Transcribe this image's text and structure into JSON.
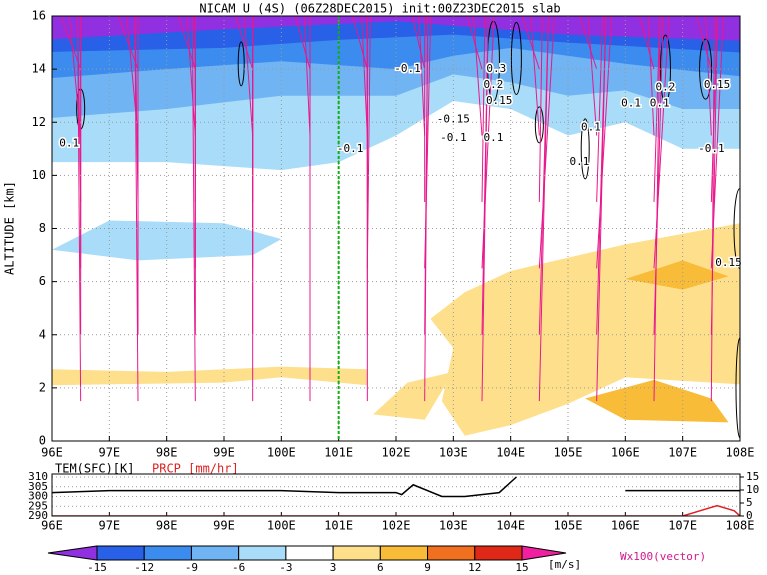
{
  "chart_data": [
    {
      "type": "vector",
      "title": "NICAM U (4S) (06Z28DEC2015) init:00Z23DEC2015 slab",
      "ylabel": "ALTITUDE [km]",
      "xlim": [
        96,
        108
      ],
      "xticks": [
        {
          "value": 96,
          "label": "96E"
        },
        {
          "value": 97,
          "label": "97E"
        },
        {
          "value": 98,
          "label": "98E"
        },
        {
          "value": 99,
          "label": "99E"
        },
        {
          "value": 100,
          "label": "100E"
        },
        {
          "value": 101,
          "label": "101E"
        },
        {
          "value": 102,
          "label": "102E"
        },
        {
          "value": 103,
          "label": "103E"
        },
        {
          "value": 104,
          "label": "104E"
        },
        {
          "value": 105,
          "label": "105E"
        },
        {
          "value": 106,
          "label": "106E"
        },
        {
          "value": 107,
          "label": "107E"
        },
        {
          "value": 108,
          "label": "108E"
        }
      ],
      "ylim": [
        0,
        16
      ],
      "yticks": [
        0,
        2,
        4,
        6,
        8,
        10,
        12,
        14,
        16
      ],
      "grid": true,
      "vline": {
        "x": 101,
        "color": "#10b010"
      },
      "vector_color": "#e8188c",
      "vectors": {
        "x": [
          96.5,
          97.5,
          98.5,
          99.5,
          100.5,
          101.5,
          102.5,
          103.5,
          104.5,
          105.5,
          106.5,
          107.5
        ],
        "rows": [
          {
            "z": 1.5,
            "u": [
              -1,
              -1,
              -1,
              0,
              0,
              0,
              1,
              2,
              3,
              3,
              2,
              1
            ],
            "w": [
              -4,
              -4,
              -4,
              -4,
              -4,
              -3,
              -5,
              -6,
              -6,
              -5,
              -4,
              -3
            ]
          },
          {
            "z": 4,
            "u": [
              0,
              0,
              0,
              0,
              0,
              0,
              1,
              2,
              3,
              3,
              3,
              2
            ],
            "w": [
              -3,
              -3,
              -3,
              -3,
              -3,
              -3,
              -4,
              -4,
              -3,
              -3,
              -2,
              -2
            ]
          },
          {
            "z": 6.5,
            "u": [
              0,
              0,
              0,
              0,
              0,
              1,
              2,
              4,
              5,
              5,
              5,
              4
            ],
            "w": [
              -3,
              -3,
              -3,
              -3,
              -3,
              -3,
              -3,
              -2,
              -1,
              -1,
              0,
              1
            ]
          },
          {
            "z": 9,
            "u": [
              -1,
              -1,
              0,
              0,
              0,
              0,
              0,
              1,
              1,
              2,
              2,
              2
            ],
            "w": [
              -3,
              -3,
              -3,
              -3,
              -3,
              -3,
              -2,
              -2,
              -1,
              -1,
              2,
              3
            ]
          },
          {
            "z": 11.5,
            "u": [
              -4,
              -4,
              -3,
              -3,
              -2,
              -2,
              -2,
              -3,
              -3,
              -3,
              -2,
              -2
            ],
            "w": [
              -1,
              -1,
              -1,
              -2,
              -2,
              -2,
              -1,
              1,
              2,
              2,
              3,
              3
            ]
          },
          {
            "z": 14,
            "u": [
              -8,
              -8,
              -7,
              -7,
              -6,
              -6,
              -5,
              -6,
              -7,
              -7,
              -6,
              -6
            ],
            "w": [
              0,
              0,
              1,
              1,
              0,
              1,
              1,
              2,
              2,
              2,
              1,
              1
            ]
          }
        ]
      },
      "contour_labels": [
        "-0.1",
        "0.3",
        "0.2",
        "0.15",
        "0.1",
        "0.2",
        "0.15",
        "-0.15",
        "-0.1",
        "0.1",
        "0.1",
        "0.1",
        "0.1",
        "-0.1",
        "0.15",
        "0.1",
        "-0.1"
      ]
    },
    {
      "type": "line",
      "ylim": [
        290,
        310
      ],
      "yticks": [
        290,
        295,
        300,
        305,
        310
      ],
      "y2lim": [
        0,
        15
      ],
      "y2ticks": [
        0,
        5,
        10,
        15
      ],
      "grid": true,
      "series": [
        {
          "name": "TEM(SFC)[K]",
          "color": "#000000",
          "x": [
            96,
            97,
            98,
            99,
            100,
            101,
            102,
            102.1,
            102.3,
            102.8,
            103.2,
            103.8,
            104.1,
            105,
            106,
            107,
            108
          ],
          "values": [
            302,
            303,
            303,
            303,
            303,
            302,
            302,
            301,
            306,
            300,
            300,
            302,
            310,
            null,
            303,
            303,
            303
          ]
        },
        {
          "name": "PRCP [mm/hr]",
          "color": "#e02020",
          "axis": "y2",
          "x": [
            96,
            100,
            104,
            107,
            107.3,
            107.6,
            107.9,
            108
          ],
          "values": [
            0,
            0,
            0,
            0,
            2,
            4,
            2,
            0
          ]
        }
      ]
    },
    {
      "type": "colorbar",
      "levels": [
        -15,
        -12,
        -9,
        -6,
        -3,
        3,
        6,
        9,
        12,
        15
      ],
      "colors": [
        "#9030e0",
        "#2860e8",
        "#3c8cf0",
        "#70b4f4",
        "#a8dcf8",
        "#ffffff",
        "#fee08c",
        "#f8bc38",
        "#f07020",
        "#e02818",
        "#b00c0c",
        "#f020a0"
      ],
      "unit": "[m/s]",
      "note": "Wx100(vector)"
    }
  ]
}
